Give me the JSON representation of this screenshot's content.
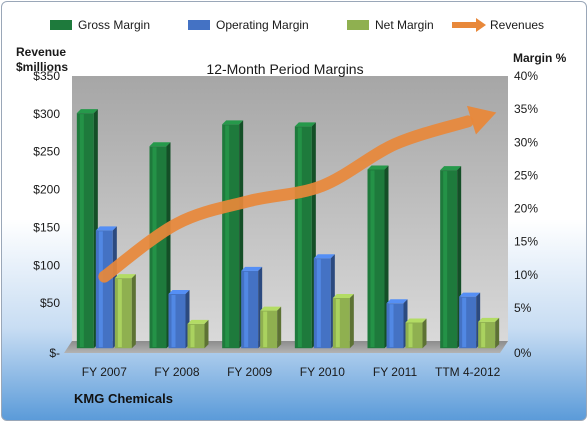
{
  "chart_data": {
    "type": "bar",
    "title": "12-Month Period Margins",
    "categories": [
      "FY 2007",
      "FY 2008",
      "FY 2009",
      "FY 2010",
      "FY 2011",
      "TTM 4-2012"
    ],
    "ylabel_left": [
      "Revenue",
      "$millions"
    ],
    "ylabel_right": "Margin %",
    "ylim_left": [
      0,
      350
    ],
    "ylim_right": [
      0,
      40
    ],
    "yticks_left": [
      "$-",
      "$50",
      "$100",
      "$150",
      "$200",
      "$250",
      "$300",
      "$350"
    ],
    "yticks_right": [
      "0%",
      "5%",
      "10%",
      "15%",
      "20%",
      "25%",
      "30%",
      "35%",
      "40%"
    ],
    "series": [
      {
        "name": "Gross Margin",
        "axis": "right",
        "values": [
          35.3,
          30.3,
          33.6,
          33.3,
          26.8,
          26.7
        ],
        "color": "#1e7a3c"
      },
      {
        "name": "Operating Margin",
        "axis": "right",
        "values": [
          17.6,
          8.0,
          11.5,
          13.4,
          6.6,
          7.6
        ],
        "color": "#4472c4"
      },
      {
        "name": "Net Margin",
        "axis": "right",
        "values": [
          10.4,
          3.5,
          5.5,
          7.4,
          3.7,
          3.8
        ],
        "color": "#8fb050"
      },
      {
        "name": "Revenues",
        "type": "line",
        "axis": "left",
        "values": [
          85,
          155,
          185,
          205,
          260,
          290
        ],
        "color": "#e8883a"
      }
    ],
    "legend": "top",
    "grid": false,
    "footer": "KMG Chemicals"
  }
}
